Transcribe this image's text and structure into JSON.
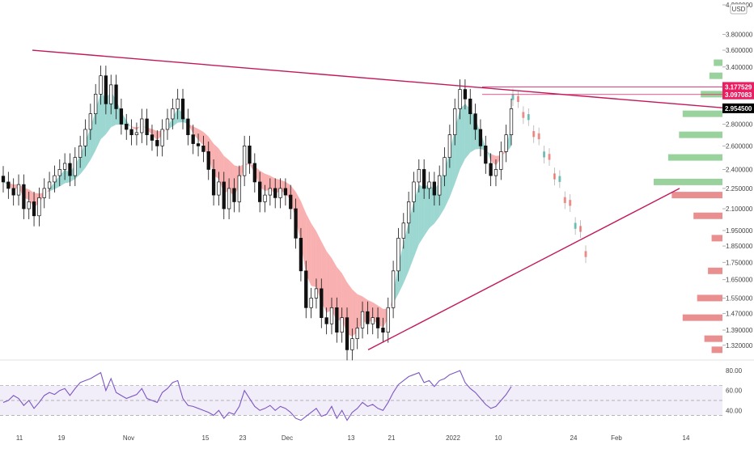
{
  "chart_data": [
    {
      "type": "candlestick",
      "currency": "USD",
      "y_ticks": [
        "4.200000",
        "3.800000",
        "3.600000",
        "3.400000",
        "3.177529",
        "3.097083",
        "2.954500",
        "2.800000",
        "2.600000",
        "2.400000",
        "2.250000",
        "2.100000",
        "1.950000",
        "1.850000",
        "1.750000",
        "1.650000",
        "1.550000",
        "1.470000",
        "1.390000",
        "1.320000"
      ],
      "ylim": [
        1.28,
        4.2
      ],
      "x_ticks": [
        "11",
        "19",
        "Nov",
        "15",
        "23",
        "Dec",
        "13",
        "21",
        "2022",
        "10",
        "24",
        "Feb",
        "14"
      ],
      "price_badges": [
        {
          "label": "3.177529",
          "value": 3.177529,
          "color": "#e91e63"
        },
        {
          "label": "3.097083",
          "value": 3.097083,
          "color": "#e91e63"
        },
        {
          "label": "2.954500",
          "value": 2.9545,
          "color": "#000000"
        }
      ],
      "close_series": [
        2.3,
        2.25,
        2.2,
        2.28,
        2.1,
        2.15,
        2.05,
        2.18,
        2.25,
        2.3,
        2.35,
        2.4,
        2.45,
        2.35,
        2.5,
        2.6,
        2.75,
        2.9,
        3.1,
        3.3,
        3.0,
        3.2,
        2.95,
        2.8,
        2.75,
        2.7,
        2.72,
        2.85,
        2.7,
        2.65,
        2.6,
        2.75,
        2.85,
        2.95,
        3.05,
        2.85,
        2.7,
        2.62,
        2.6,
        2.55,
        2.4,
        2.2,
        2.3,
        2.1,
        2.25,
        2.15,
        2.35,
        2.6,
        2.45,
        2.3,
        2.15,
        2.2,
        2.25,
        2.18,
        2.25,
        2.2,
        2.1,
        1.9,
        1.7,
        1.5,
        1.55,
        1.6,
        1.45,
        1.42,
        1.5,
        1.38,
        1.45,
        1.3,
        1.35,
        1.4,
        1.48,
        1.42,
        1.45,
        1.4,
        1.38,
        1.5,
        1.7,
        1.9,
        2.0,
        2.15,
        2.3,
        2.4,
        2.25,
        2.3,
        2.2,
        2.35,
        2.5,
        2.7,
        2.95,
        3.15,
        3.05,
        2.9,
        2.75,
        2.6,
        2.45,
        2.35,
        2.4,
        2.55,
        2.7,
        2.95
      ],
      "projection": {
        "from": 3.1,
        "to": 1.83
      },
      "resistance_line": {
        "from": 3.6,
        "to": 2.96
      },
      "support_line": {
        "from": 1.3,
        "to": 2.25
      },
      "volume_profile_bands": [
        {
          "price": 3.45,
          "volume": 12,
          "side": "green"
        },
        {
          "price": 3.3,
          "volume": 18,
          "side": "green"
        },
        {
          "price": 3.1,
          "volume": 30,
          "side": "green"
        },
        {
          "price": 2.9,
          "volume": 55,
          "side": "green"
        },
        {
          "price": 2.7,
          "volume": 60,
          "side": "green"
        },
        {
          "price": 2.5,
          "volume": 75,
          "side": "green"
        },
        {
          "price": 2.3,
          "volume": 95,
          "side": "green"
        },
        {
          "price": 2.2,
          "volume": 70,
          "side": "red"
        },
        {
          "price": 2.05,
          "volume": 40,
          "side": "red"
        },
        {
          "price": 1.9,
          "volume": 15,
          "side": "red"
        },
        {
          "price": 1.7,
          "volume": 20,
          "side": "red"
        },
        {
          "price": 1.55,
          "volume": 35,
          "side": "red"
        },
        {
          "price": 1.45,
          "volume": 55,
          "side": "red"
        },
        {
          "price": 1.35,
          "volume": 25,
          "side": "red"
        },
        {
          "price": 1.3,
          "volume": 15,
          "side": "red"
        }
      ]
    },
    {
      "type": "line",
      "indicator": "RSI",
      "y_ticks": [
        "80.00",
        "60.00",
        "40.00"
      ],
      "ylim": [
        28,
        85
      ],
      "band": [
        35,
        65
      ],
      "values": [
        48,
        50,
        55,
        52,
        45,
        50,
        42,
        48,
        55,
        58,
        56,
        60,
        62,
        55,
        62,
        68,
        70,
        72,
        75,
        78,
        60,
        72,
        58,
        55,
        52,
        54,
        56,
        62,
        52,
        50,
        48,
        58,
        62,
        68,
        70,
        52,
        45,
        44,
        42,
        40,
        38,
        35,
        40,
        32,
        38,
        36,
        44,
        60,
        52,
        44,
        40,
        42,
        45,
        40,
        44,
        42,
        38,
        32,
        30,
        34,
        38,
        42,
        34,
        36,
        44,
        32,
        40,
        30,
        38,
        42,
        48,
        44,
        46,
        42,
        40,
        48,
        58,
        66,
        70,
        74,
        76,
        78,
        68,
        70,
        64,
        70,
        72,
        76,
        78,
        80,
        68,
        62,
        58,
        52,
        46,
        42,
        44,
        50,
        56,
        64
      ]
    }
  ]
}
